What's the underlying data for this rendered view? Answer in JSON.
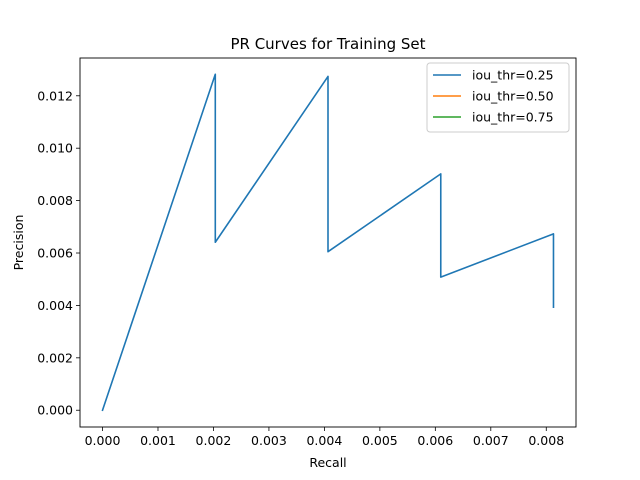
{
  "chart_data": {
    "type": "line",
    "title": "PR Curves for Training Set",
    "xlabel": "Recall",
    "ylabel": "Precision",
    "xlim": [
      -0.000406,
      0.008536
    ],
    "ylim": [
      -0.00064,
      0.013442
    ],
    "xticks": [
      0.0,
      0.001,
      0.002,
      0.003,
      0.004,
      0.005,
      0.006,
      0.007,
      0.008
    ],
    "xtick_labels": [
      "0.000",
      "0.001",
      "0.002",
      "0.003",
      "0.004",
      "0.005",
      "0.006",
      "0.007",
      "0.008"
    ],
    "yticks": [
      0.0,
      0.002,
      0.004,
      0.006,
      0.008,
      0.01,
      0.012
    ],
    "ytick_labels": [
      "0.000",
      "0.002",
      "0.004",
      "0.006",
      "0.008",
      "0.010",
      "0.012"
    ],
    "grid": false,
    "legend_position": "top-right",
    "series": [
      {
        "name": "iou_thr=0.25",
        "color": "#1f77b4",
        "points": [
          [
            0.0,
            0.0
          ],
          [
            0.002033,
            0.01282
          ],
          [
            0.002033,
            0.00641
          ],
          [
            0.004065,
            0.01274
          ],
          [
            0.004065,
            0.00605
          ],
          [
            0.006098,
            0.00902
          ],
          [
            0.006098,
            0.00508
          ],
          [
            0.00813,
            0.00673
          ],
          [
            0.00813,
            0.00393
          ]
        ]
      },
      {
        "name": "iou_thr=0.50",
        "color": "#ff7f0e",
        "points": []
      },
      {
        "name": "iou_thr=0.75",
        "color": "#2ca02c",
        "points": []
      }
    ]
  }
}
